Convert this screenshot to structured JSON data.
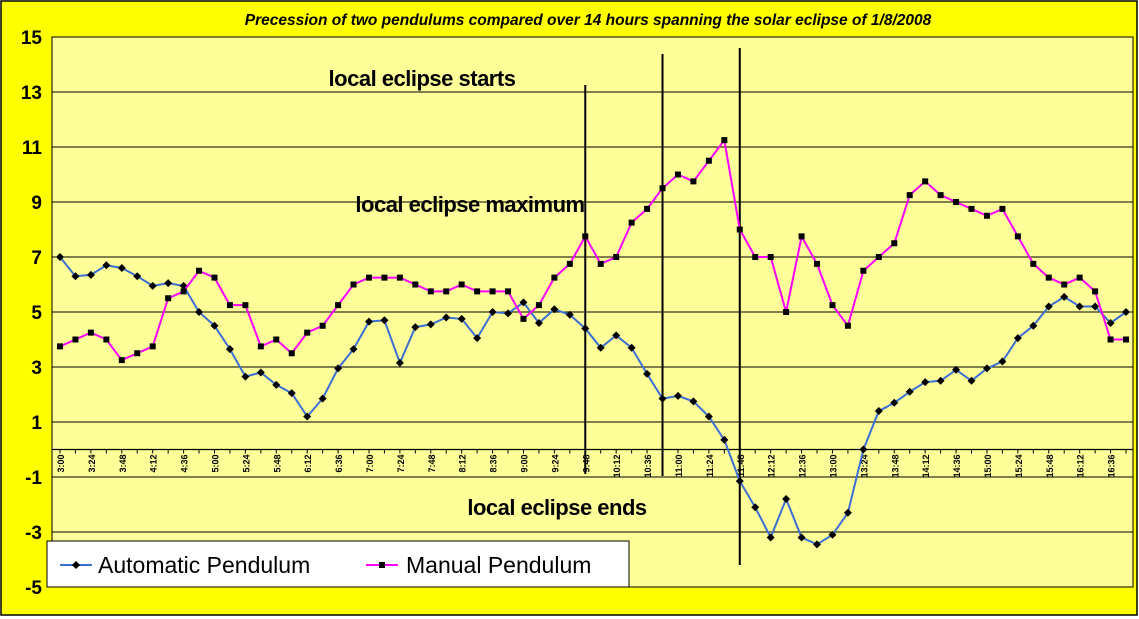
{
  "chart_data": {
    "type": "line",
    "title": "Precession of two pendulums compared over 14 hours spanning the solar eclipse of 1/8/2008",
    "xlabel": "",
    "ylabel": "",
    "ylim": [
      -5,
      15
    ],
    "yticks": [
      15,
      13,
      11,
      9,
      7,
      5,
      3,
      1,
      -1,
      -3,
      -5
    ],
    "x_tick_labels": [
      "3:00",
      "3:24",
      "3:48",
      "4:12",
      "4:36",
      "5:00",
      "5:24",
      "5:48",
      "6:12",
      "6:36",
      "7:00",
      "7:24",
      "7:48",
      "8:12",
      "8:36",
      "9:00",
      "9:24",
      "9:48",
      "10:12",
      "10:36",
      "11:00",
      "11:24",
      "11:48",
      "12:12",
      "12:36",
      "13:00",
      "13:24",
      "13:48",
      "14:12",
      "14:36",
      "15:00",
      "15:24",
      "15:48",
      "16:12",
      "16:36"
    ],
    "grid": true,
    "legend_position": "bottom-left",
    "background_color": "#ffff99",
    "frame_color": "#ffff00",
    "series": [
      {
        "name": "Automatic Pendulum",
        "color": "#3b6fd4",
        "values": [
          7.0,
          6.3,
          6.35,
          6.7,
          6.6,
          6.3,
          5.95,
          6.05,
          5.95,
          5.0,
          4.5,
          3.65,
          2.65,
          2.8,
          2.35,
          2.05,
          1.2,
          1.85,
          2.95,
          3.65,
          4.65,
          4.7,
          3.15,
          4.45,
          4.55,
          4.8,
          4.75,
          4.05,
          5.0,
          4.95,
          5.35,
          4.6,
          5.1,
          4.9,
          4.4,
          3.7,
          4.15,
          3.7,
          2.75,
          1.85,
          1.95,
          1.75,
          1.2,
          0.35,
          -1.15,
          -2.1,
          -3.2,
          -1.8,
          -3.2,
          -3.45,
          -3.1,
          -2.3,
          0.0,
          1.4,
          1.7,
          2.1,
          2.45,
          2.5,
          2.9,
          2.5,
          2.95,
          3.2,
          4.05,
          4.5,
          5.2,
          5.55,
          5.2,
          5.2,
          4.6,
          5.0
        ]
      },
      {
        "name": "Manual Pendulum",
        "color": "#ff00ff",
        "values": [
          3.75,
          4.0,
          4.25,
          4.0,
          3.25,
          3.5,
          3.75,
          5.5,
          5.75,
          6.5,
          6.25,
          5.25,
          5.25,
          3.75,
          4.0,
          3.5,
          4.25,
          4.5,
          5.25,
          6.0,
          6.25,
          6.25,
          6.25,
          6.0,
          5.75,
          5.75,
          6.0,
          5.75,
          5.75,
          5.75,
          4.75,
          5.25,
          6.25,
          6.75,
          7.75,
          6.75,
          7.0,
          8.25,
          8.75,
          9.5,
          10.0,
          9.75,
          10.5,
          11.25,
          8.0,
          7.0,
          7.0,
          5.0,
          7.75,
          6.75,
          5.25,
          4.5,
          6.5,
          7.0,
          7.5,
          9.25,
          9.75,
          9.25,
          9.0,
          8.75,
          8.5,
          8.75,
          7.75,
          6.75,
          6.25,
          6.0,
          6.25,
          5.75,
          4.0,
          4.0
        ]
      }
    ],
    "annotations": [
      {
        "text": "local eclipse starts",
        "x_index": 34
      },
      {
        "text": "local eclipse maximum",
        "x_index": 39
      },
      {
        "text": "local eclipse ends",
        "x_index": 44
      }
    ]
  }
}
